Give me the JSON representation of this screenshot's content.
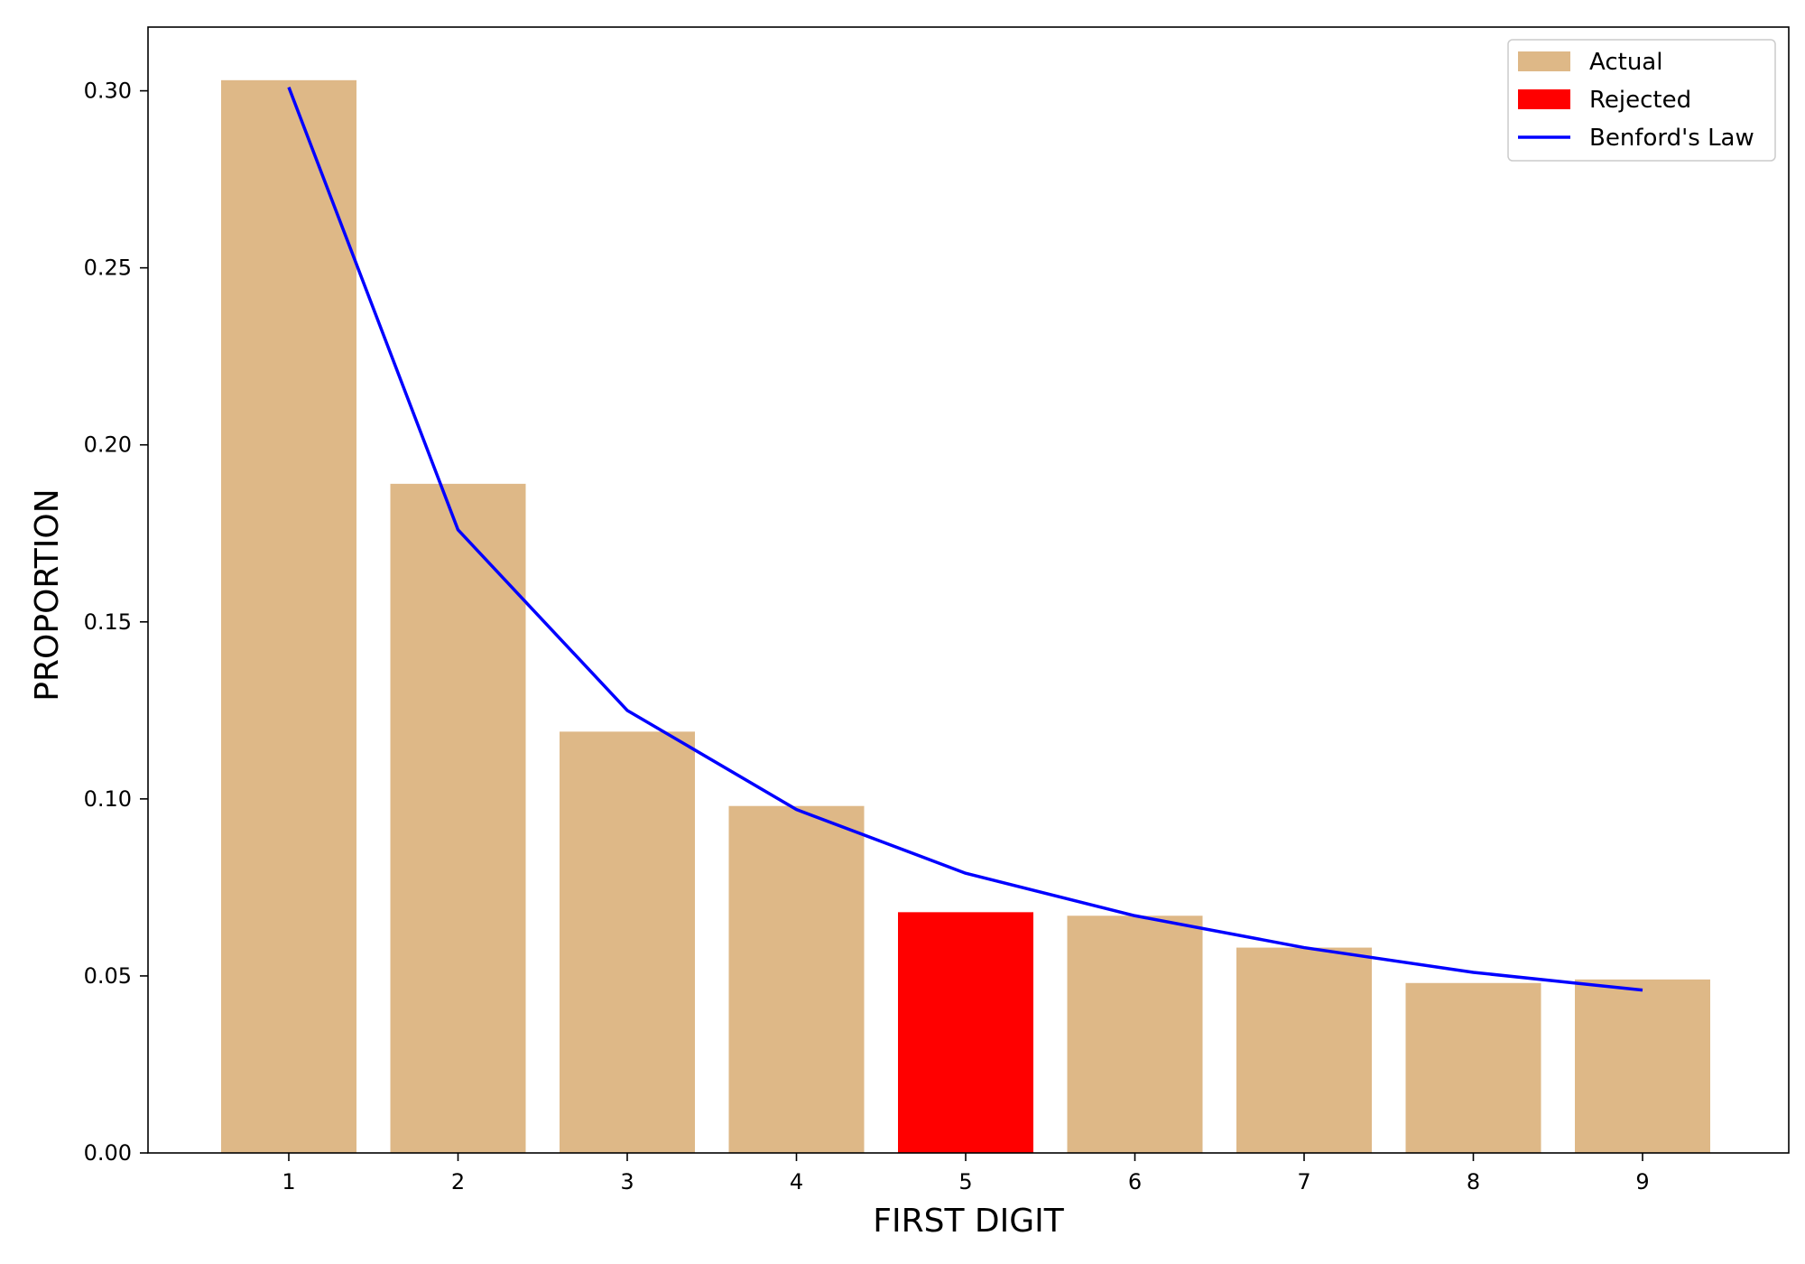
{
  "chart_data": {
    "type": "bar",
    "title": "",
    "xlabel": "FIRST DIGIT",
    "ylabel": "PROPORTION",
    "categories": [
      "1",
      "2",
      "3",
      "4",
      "5",
      "6",
      "7",
      "8",
      "9"
    ],
    "ylim": [
      0,
      0.318
    ],
    "yticks": [
      "0.00",
      "0.05",
      "0.10",
      "0.15",
      "0.20",
      "0.25",
      "0.30"
    ],
    "ytick_values": [
      0,
      0.05,
      0.1,
      0.15,
      0.2,
      0.25,
      0.3
    ],
    "grid": false,
    "legend_position": "top-right",
    "series": [
      {
        "name": "Actual",
        "type": "bar",
        "color": "#deb887",
        "values": [
          0.303,
          0.189,
          0.119,
          0.098,
          null,
          0.067,
          0.058,
          0.048,
          0.049
        ]
      },
      {
        "name": "Rejected",
        "type": "bar",
        "color": "#ff0000",
        "values": [
          null,
          null,
          null,
          null,
          0.068,
          null,
          null,
          null,
          null
        ]
      },
      {
        "name": "Benford's Law",
        "type": "line",
        "color": "#0000ff",
        "values": [
          0.301,
          0.176,
          0.125,
          0.097,
          0.079,
          0.067,
          0.058,
          0.051,
          0.046
        ]
      }
    ]
  }
}
